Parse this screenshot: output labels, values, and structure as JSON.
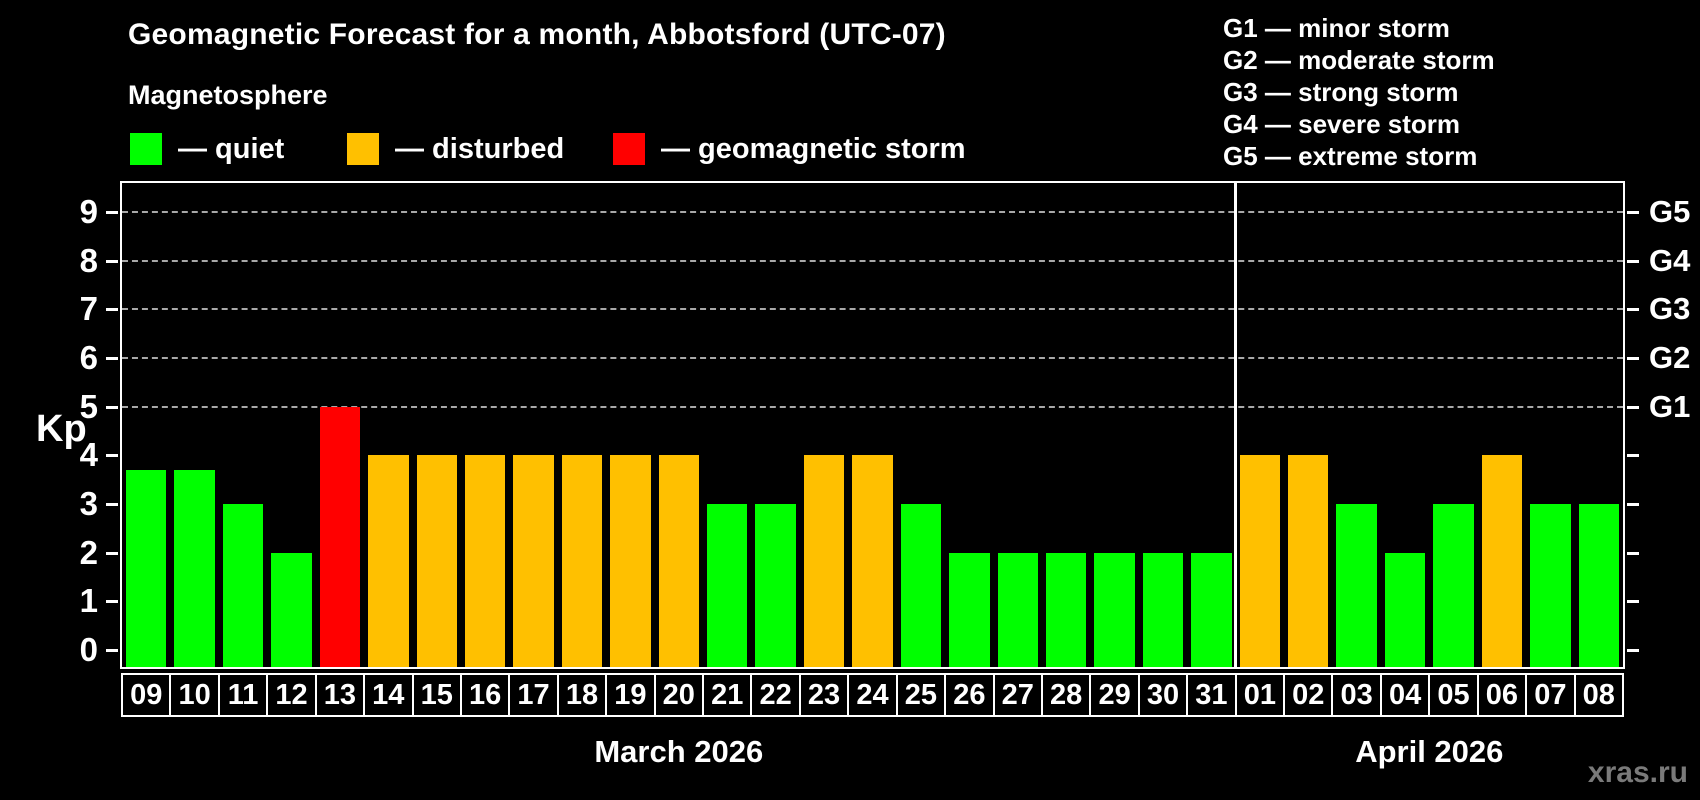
{
  "title": "Geomagnetic Forecast for a month, Abbotsford (UTC-07)",
  "subtitle": "Magnetosphere",
  "watermark": "xras.ru",
  "colors": {
    "quiet": "#00FF00",
    "disturbed": "#FFC000",
    "storm": "#FF0000",
    "grid": "#A8A8A8",
    "axis": "#FFFFFF",
    "background": "#000000",
    "watermark": "#7A7A7A"
  },
  "legend": {
    "items": [
      {
        "status": "quiet",
        "label": "— quiet"
      },
      {
        "status": "disturbed",
        "label": "— disturbed"
      },
      {
        "status": "storm",
        "label": "— geomagnetic storm"
      }
    ]
  },
  "g_legend": {
    "items": [
      "G1 — minor storm",
      "G2 — moderate storm",
      "G3 — strong storm",
      "G4 — severe storm",
      "G5 — extreme storm"
    ]
  },
  "y_axis": {
    "label": "Kp",
    "ticks": [
      0,
      1,
      2,
      3,
      4,
      5,
      6,
      7,
      8,
      9
    ]
  },
  "right_axis": {
    "ticks": [
      0,
      1,
      2,
      3,
      4,
      5,
      6,
      7,
      8,
      9
    ],
    "labels": [
      {
        "text": "G1",
        "kp": 5
      },
      {
        "text": "G2",
        "kp": 6
      },
      {
        "text": "G3",
        "kp": 7
      },
      {
        "text": "G4",
        "kp": 8
      },
      {
        "text": "G5",
        "kp": 9
      }
    ]
  },
  "chart_data": {
    "type": "bar",
    "title": "Geomagnetic Forecast for a month, Abbotsford (UTC-07)",
    "ylabel": "Kp",
    "ylim": [
      0,
      9
    ],
    "grid_levels": [
      5,
      6,
      7,
      8,
      9
    ],
    "legend_position": "top",
    "categories": [
      "09",
      "10",
      "11",
      "12",
      "13",
      "14",
      "15",
      "16",
      "17",
      "18",
      "19",
      "20",
      "21",
      "22",
      "23",
      "24",
      "25",
      "26",
      "27",
      "28",
      "29",
      "30",
      "31",
      "01",
      "02",
      "03",
      "04",
      "05",
      "06",
      "07",
      "08"
    ],
    "values": [
      3.7,
      3.7,
      3,
      2,
      5,
      4,
      4,
      4,
      4,
      4,
      4,
      4,
      3,
      3,
      4,
      4,
      3,
      2,
      2,
      2,
      2,
      2,
      2,
      4,
      4,
      3,
      2,
      3,
      4,
      3,
      3
    ],
    "status": [
      "quiet",
      "quiet",
      "quiet",
      "quiet",
      "storm",
      "disturbed",
      "disturbed",
      "disturbed",
      "disturbed",
      "disturbed",
      "disturbed",
      "disturbed",
      "quiet",
      "quiet",
      "disturbed",
      "disturbed",
      "quiet",
      "quiet",
      "quiet",
      "quiet",
      "quiet",
      "quiet",
      "quiet",
      "disturbed",
      "disturbed",
      "quiet",
      "quiet",
      "quiet",
      "disturbed",
      "quiet",
      "quiet"
    ],
    "months": [
      {
        "label": "March 2026",
        "start_index": 0,
        "days": 23
      },
      {
        "label": "April 2026",
        "start_index": 23,
        "days": 8
      }
    ]
  }
}
